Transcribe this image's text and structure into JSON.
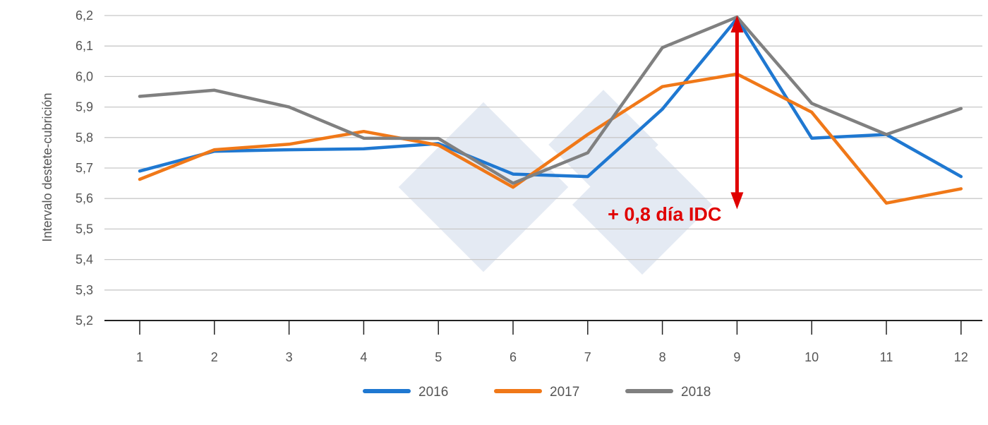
{
  "chart_data": {
    "type": "line",
    "title": "",
    "xlabel": "",
    "ylabel": "Intervalo destete-cubrición",
    "categories": [
      "1",
      "2",
      "3",
      "4",
      "5",
      "6",
      "7",
      "8",
      "9",
      "10",
      "11",
      "12"
    ],
    "ylim": [
      5.2,
      6.2
    ],
    "yticks": [
      "5,2",
      "5,3",
      "5,4",
      "5,5",
      "5,6",
      "5,7",
      "5,8",
      "5,9",
      "6,0",
      "6,1",
      "6,2"
    ],
    "grid": true,
    "legend_position": "bottom",
    "series": [
      {
        "name": "2016",
        "color": "#1f78d1",
        "values": [
          5.69,
          5.755,
          5.76,
          5.763,
          5.78,
          5.68,
          5.672,
          5.893,
          6.19,
          5.798,
          5.81,
          5.672
        ]
      },
      {
        "name": "2017",
        "color": "#f07818",
        "values": [
          5.663,
          5.76,
          5.778,
          5.82,
          5.775,
          5.637,
          5.81,
          5.967,
          6.008,
          5.883,
          5.585,
          5.632
        ]
      },
      {
        "name": "2018",
        "color": "#808080",
        "values": [
          5.935,
          5.955,
          5.9,
          5.798,
          5.797,
          5.65,
          5.75,
          6.095,
          6.195,
          5.912,
          5.81,
          5.895
        ]
      }
    ],
    "annotation": {
      "text": "+ 0,8 día IDC",
      "color": "#e00000",
      "x_category": "9",
      "y_from": 6.2,
      "y_to": 5.565
    }
  }
}
